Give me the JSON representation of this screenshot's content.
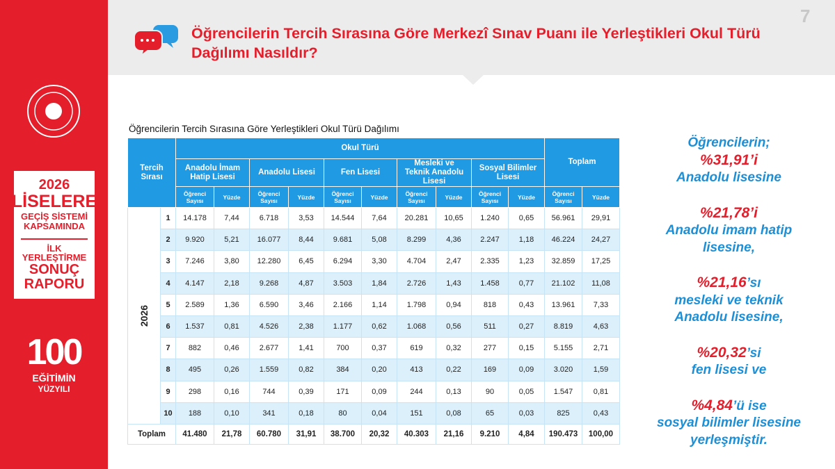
{
  "page_number": "7",
  "header": {
    "title": "Öğrencilerin Tercih Sırasına Göre Merkezî Sınav Puanı ile Yerleştikleri Okul Türü Dağılımı Nasıldır?"
  },
  "sidebar": {
    "report_lines": [
      "2026",
      "LİSELERE",
      "GEÇİŞ SİSTEMİ",
      "KAPSAMINDA",
      "İLK",
      "YERLEŞTİRME",
      "SONUÇ",
      "RAPORU"
    ],
    "logo": {
      "number": "100",
      "lines": [
        "EĞİTİMİN",
        "YÜZYILI"
      ]
    }
  },
  "table": {
    "caption": "Öğrencilerin Tercih Sırasına Göre Yerleştikleri Okul Türü Dağılımı",
    "row_header": "Tercih Sırası",
    "group_header": "Okul Türü",
    "total_header": "Toplam",
    "school_types": [
      "Anadolu İmam Hatip Lisesi",
      "Anadolu Lisesi",
      "Fen Lisesi",
      "Mesleki ve Teknik Anadolu Lisesi",
      "Sosyal Bilimler Lisesi"
    ],
    "sub_headers": [
      "Öğrenci Sayısı",
      "Yüzde"
    ],
    "year": "2026",
    "rows": [
      {
        "rank": "1",
        "cells": [
          "14.178",
          "7,44",
          "6.718",
          "3,53",
          "14.544",
          "7,64",
          "20.281",
          "10,65",
          "1.240",
          "0,65",
          "56.961",
          "29,91"
        ]
      },
      {
        "rank": "2",
        "cells": [
          "9.920",
          "5,21",
          "16.077",
          "8,44",
          "9.681",
          "5,08",
          "8.299",
          "4,36",
          "2.247",
          "1,18",
          "46.224",
          "24,27"
        ]
      },
      {
        "rank": "3",
        "cells": [
          "7.246",
          "3,80",
          "12.280",
          "6,45",
          "6.294",
          "3,30",
          "4.704",
          "2,47",
          "2.335",
          "1,23",
          "32.859",
          "17,25"
        ]
      },
      {
        "rank": "4",
        "cells": [
          "4.147",
          "2,18",
          "9.268",
          "4,87",
          "3.503",
          "1,84",
          "2.726",
          "1,43",
          "1.458",
          "0,77",
          "21.102",
          "11,08"
        ]
      },
      {
        "rank": "5",
        "cells": [
          "2.589",
          "1,36",
          "6.590",
          "3,46",
          "2.166",
          "1,14",
          "1.798",
          "0,94",
          "818",
          "0,43",
          "13.961",
          "7,33"
        ]
      },
      {
        "rank": "6",
        "cells": [
          "1.537",
          "0,81",
          "4.526",
          "2,38",
          "1.177",
          "0,62",
          "1.068",
          "0,56",
          "511",
          "0,27",
          "8.819",
          "4,63"
        ]
      },
      {
        "rank": "7",
        "cells": [
          "882",
          "0,46",
          "2.677",
          "1,41",
          "700",
          "0,37",
          "619",
          "0,32",
          "277",
          "0,15",
          "5.155",
          "2,71"
        ]
      },
      {
        "rank": "8",
        "cells": [
          "495",
          "0,26",
          "1.559",
          "0,82",
          "384",
          "0,20",
          "413",
          "0,22",
          "169",
          "0,09",
          "3.020",
          "1,59"
        ]
      },
      {
        "rank": "9",
        "cells": [
          "298",
          "0,16",
          "744",
          "0,39",
          "171",
          "0,09",
          "244",
          "0,13",
          "90",
          "0,05",
          "1.547",
          "0,81"
        ]
      },
      {
        "rank": "10",
        "cells": [
          "188",
          "0,10",
          "341",
          "0,18",
          "80",
          "0,04",
          "151",
          "0,08",
          "65",
          "0,03",
          "825",
          "0,43"
        ]
      }
    ],
    "total_row": {
      "label": "Toplam",
      "cells": [
        "41.480",
        "21,78",
        "60.780",
        "31,91",
        "38.700",
        "20,32",
        "40.303",
        "21,16",
        "9.210",
        "4,84",
        "190.473",
        "100,00"
      ]
    }
  },
  "summary": [
    [
      [
        {
          "text": "Öğrencilerin;"
        }
      ],
      [
        {
          "text": "%31,91’i",
          "emphasis": true
        }
      ],
      [
        {
          "text": "Anadolu lisesine"
        }
      ]
    ],
    [
      [
        {
          "text": "%21,78’i",
          "emphasis": true
        }
      ],
      [
        {
          "text": "Anadolu imam hatip"
        }
      ],
      [
        {
          "text": "lisesine,"
        }
      ]
    ],
    [
      [
        {
          "text": "%21,16",
          "emphasis": true
        },
        {
          "text": "’sı"
        }
      ],
      [
        {
          "text": "mesleki ve teknik"
        }
      ],
      [
        {
          "text": "Anadolu lisesine,"
        }
      ]
    ],
    [
      [
        {
          "text": "%20,32",
          "emphasis": true
        },
        {
          "text": "’si"
        }
      ],
      [
        {
          "text": "fen lisesi ve"
        }
      ]
    ],
    [
      [
        {
          "text": "%4,84",
          "emphasis": true
        },
        {
          "text": "’ü ise"
        }
      ],
      [
        {
          "text": "sosyal bilimler lisesine"
        }
      ],
      [
        {
          "text": "yerleşmiştir."
        }
      ]
    ]
  ]
}
